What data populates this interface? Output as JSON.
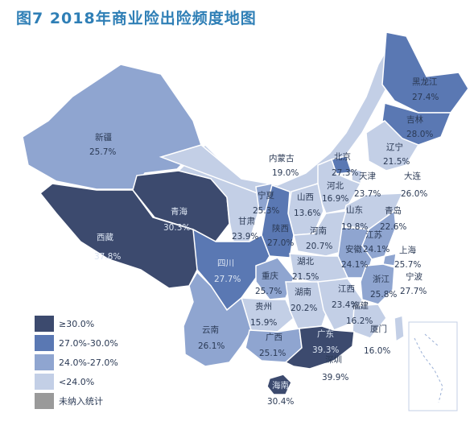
{
  "title": "图7  2018年商业险出险频度地图",
  "colors": {
    "ge30": "#3c4a6e",
    "r27_30": "#5a78b3",
    "r24_27": "#8fa5d0",
    "lt24": "#c3cfe6",
    "na": "#9a9a9a"
  },
  "legend": [
    {
      "label": "≥30.0%",
      "color": "#3c4a6e"
    },
    {
      "label": "27.0%-30.0%",
      "color": "#5a78b3"
    },
    {
      "label": "24.0%-27.0%",
      "color": "#8fa5d0"
    },
    {
      "label": "<24.0%",
      "color": "#c3cfe6"
    },
    {
      "label": "未纳入统计",
      "color": "#9a9a9a"
    }
  ],
  "regions": [
    {
      "name": "新疆",
      "value": "25.7%"
    },
    {
      "name": "西藏",
      "value": "37.8%"
    },
    {
      "name": "青海",
      "value": "30.3%"
    },
    {
      "name": "甘肃",
      "value": "23.9%"
    },
    {
      "name": "宁夏",
      "value": "25.3%"
    },
    {
      "name": "内蒙古",
      "value": "19.0%"
    },
    {
      "name": "黑龙江",
      "value": "27.4%"
    },
    {
      "name": "吉林",
      "value": "28.0%"
    },
    {
      "name": "辽宁",
      "value": "21.5%"
    },
    {
      "name": "北京",
      "value": "27.3%"
    },
    {
      "name": "天津",
      "value": "23.7%"
    },
    {
      "name": "河北",
      "value": "16.9%"
    },
    {
      "name": "大连",
      "value": "26.0%"
    },
    {
      "name": "山西",
      "value": "13.6%"
    },
    {
      "name": "陕西",
      "value": "27.0%"
    },
    {
      "name": "山东",
      "value": "19.8%"
    },
    {
      "name": "青岛",
      "value": "22.6%"
    },
    {
      "name": "河南",
      "value": "20.7%"
    },
    {
      "name": "江苏",
      "value": "24.1%"
    },
    {
      "name": "安徽",
      "value": "24.1%"
    },
    {
      "name": "上海",
      "value": "25.7%"
    },
    {
      "name": "四川",
      "value": "27.7%"
    },
    {
      "name": "湖北",
      "value": "21.5%"
    },
    {
      "name": "重庆",
      "value": "25.7%"
    },
    {
      "name": "浙江",
      "value": "25.8%"
    },
    {
      "name": "宁波",
      "value": "27.7%"
    },
    {
      "name": "湖南",
      "value": "20.2%"
    },
    {
      "name": "江西",
      "value": "23.4%"
    },
    {
      "name": "贵州",
      "value": "15.9%"
    },
    {
      "name": "福建",
      "value": "16.2%"
    },
    {
      "name": "云南",
      "value": "26.1%"
    },
    {
      "name": "广西",
      "value": "25.1%"
    },
    {
      "name": "广东",
      "value": "39.3%"
    },
    {
      "name": "厦门",
      "value": "16.0%"
    },
    {
      "name": "深圳",
      "value": "39.9%"
    },
    {
      "name": "海南",
      "value": "30.4%"
    }
  ]
}
